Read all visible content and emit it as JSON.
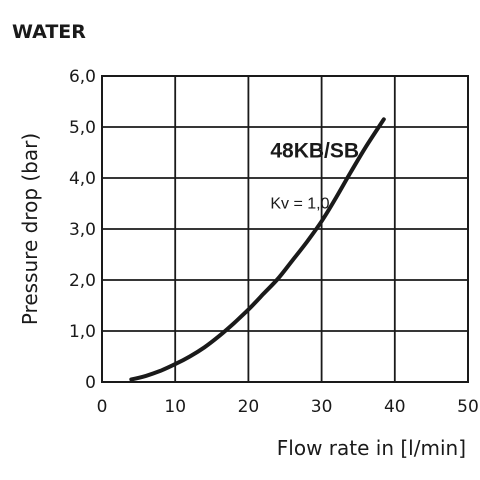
{
  "chart_data": {
    "type": "line",
    "title": "WATER",
    "xlabel": "Flow rate in [l/min]",
    "ylabel": "Pressure drop (bar)",
    "xlim": [
      0,
      50
    ],
    "ylim": [
      0,
      6
    ],
    "x_ticks": [
      0,
      10,
      20,
      30,
      40,
      50
    ],
    "y_ticks": [
      0,
      1,
      2,
      3,
      4,
      5,
      6
    ],
    "x_tick_labels": [
      "0",
      "10",
      "20",
      "30",
      "40",
      "50"
    ],
    "y_tick_labels": [
      "0",
      "1,0",
      "2,0",
      "3,0",
      "4,0",
      "5,0",
      "6,0"
    ],
    "grid": true,
    "annotations": [
      {
        "text": "48KB/SB",
        "x": 23,
        "y": 4.4
      },
      {
        "text": "Kv = 1,0",
        "x": 23,
        "y": 3.4
      }
    ],
    "series": [
      {
        "x": [
          4,
          6,
          8,
          10,
          12,
          14,
          16,
          18,
          20,
          22,
          24,
          26,
          28,
          30,
          32,
          34,
          36,
          38.5
        ],
        "y": [
          0.05,
          0.12,
          0.22,
          0.35,
          0.5,
          0.68,
          0.9,
          1.15,
          1.42,
          1.72,
          2.02,
          2.38,
          2.75,
          3.15,
          3.62,
          4.12,
          4.6,
          5.15
        ]
      }
    ]
  }
}
